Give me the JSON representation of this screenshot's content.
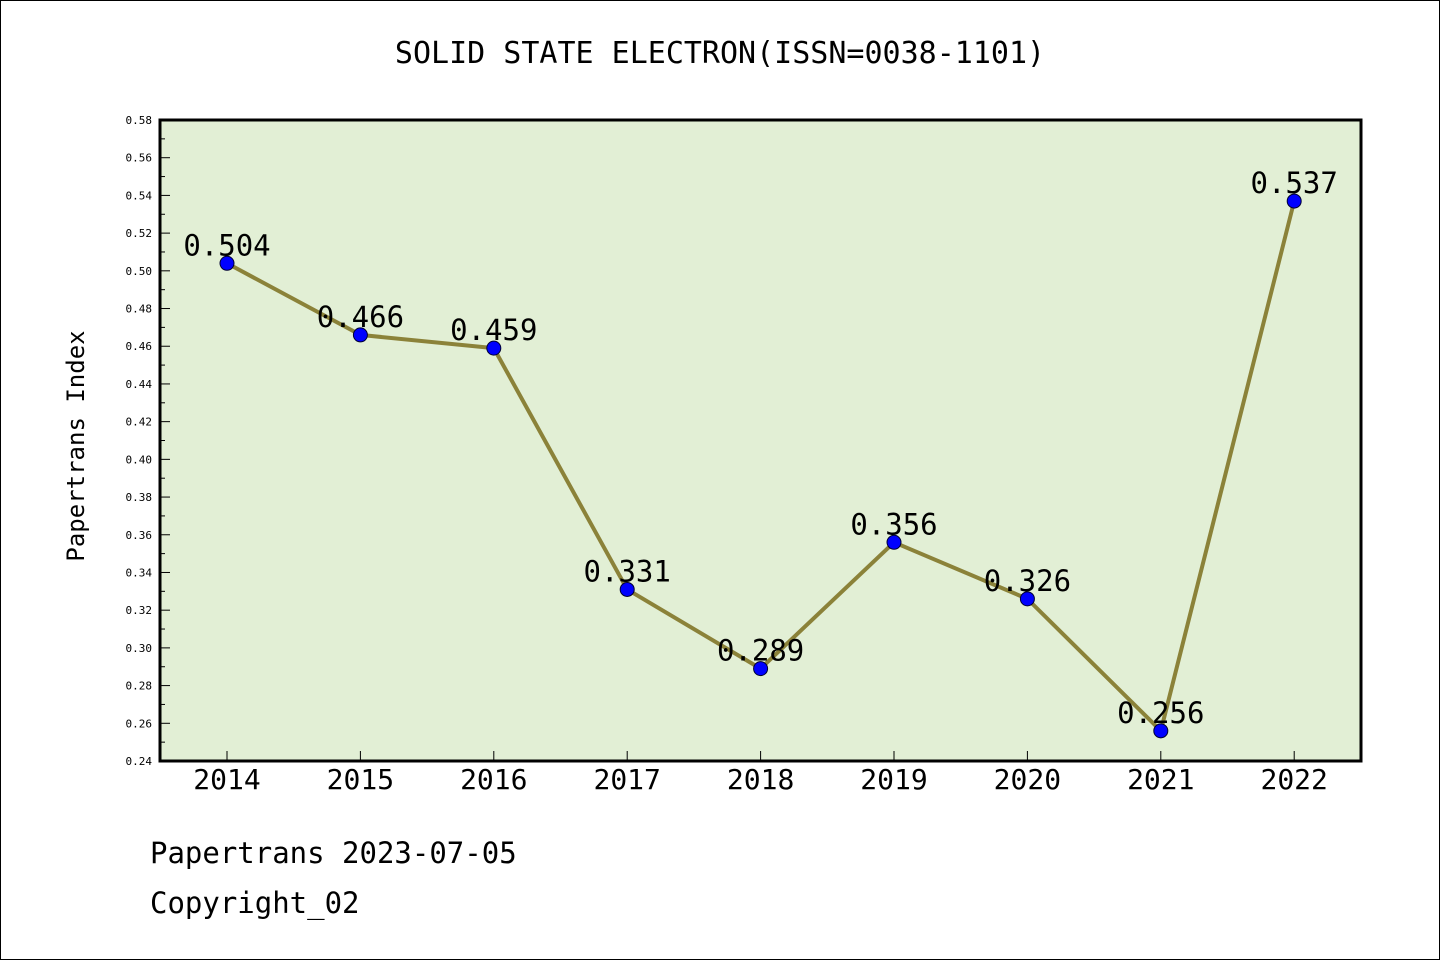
{
  "chart_data": {
    "type": "line",
    "title": "SOLID STATE ELECTRON(ISSN=0038-1101)",
    "xlabel": "",
    "ylabel": "Papertrans Index",
    "categories": [
      "2014",
      "2015",
      "2016",
      "2017",
      "2018",
      "2019",
      "2020",
      "2021",
      "2022"
    ],
    "series": [
      {
        "values": [
          0.504,
          0.466,
          0.459,
          0.331,
          0.289,
          0.356,
          0.326,
          0.256,
          0.537
        ]
      }
    ],
    "data_labels": [
      "0.504",
      "0.466",
      "0.459",
      "0.331",
      "0.289",
      "0.356",
      "0.326",
      "0.256",
      "0.537"
    ],
    "ylim": [
      0.24,
      0.58
    ],
    "yticks": [
      "0.24",
      "0.26",
      "0.28",
      "0.30",
      "0.32",
      "0.34",
      "0.36",
      "0.38",
      "0.40",
      "0.42",
      "0.44",
      "0.46",
      "0.48",
      "0.50",
      "0.52",
      "0.54",
      "0.56",
      "0.58"
    ],
    "grid": false,
    "colors": {
      "plot_bg": "#e2efd5",
      "line": "#8b8239",
      "marker": "#0000ff"
    }
  },
  "footer": {
    "line1": "Papertrans 2023-07-05",
    "line2": "Copyright_02"
  }
}
